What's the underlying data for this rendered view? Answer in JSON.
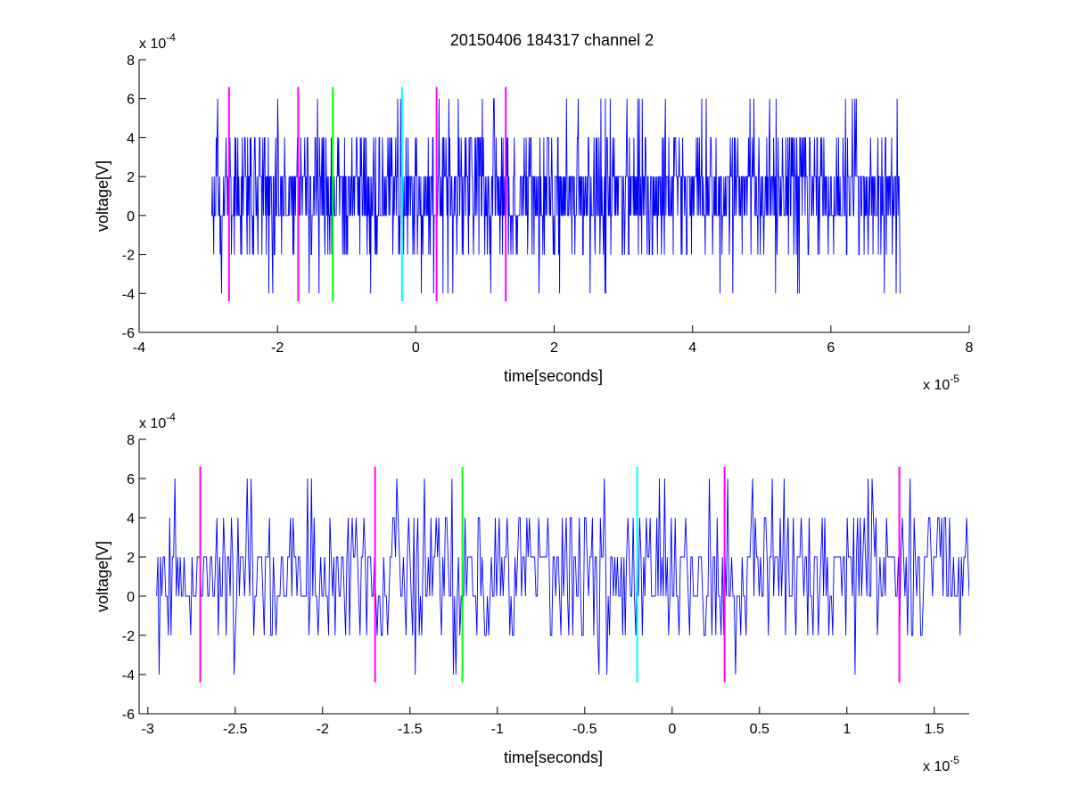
{
  "figure_title": "20150406 184317 channel 2",
  "colors": {
    "trace": "#0000ff",
    "magenta": "#ff00ff",
    "green": "#00ff00",
    "cyan": "#00ffff",
    "axes": "#000000"
  },
  "chart_data": [
    {
      "type": "line",
      "title": "20150406 184317 channel 2",
      "xlabel": "time[seconds]",
      "ylabel": "voltage[V]",
      "x_exponent": "x 10",
      "x_exponent_power": "-5",
      "y_exponent": "x 10",
      "y_exponent_power": "-4",
      "xlim": [
        -4e-05,
        8e-05
      ],
      "ylim": [
        -0.0006,
        0.0008
      ],
      "x_ticks": [
        -4e-05,
        -2e-05,
        0,
        2e-05,
        4e-05,
        6e-05,
        8e-05
      ],
      "x_tick_labels": [
        "-4",
        "-2",
        "0",
        "2",
        "4",
        "6",
        "8"
      ],
      "y_ticks": [
        -0.0006,
        -0.0004,
        -0.0002,
        0,
        0.0002,
        0.0004,
        0.0006,
        0.0008
      ],
      "y_tick_labels": [
        "-6",
        "-4",
        "-2",
        "0",
        "2",
        "4",
        "6",
        "8"
      ],
      "grid": false,
      "signal": {
        "x_start": -2.95e-05,
        "x_end": 7e-05,
        "level_step": 0.0002,
        "typical_levels": [
          0,
          0.0002
        ],
        "min": -0.0004,
        "max": 0.0006
      },
      "markers": [
        {
          "x": -2.7e-05,
          "color": "magenta",
          "y_range": [
            -0.00044,
            0.00066
          ]
        },
        {
          "x": -1.7e-05,
          "color": "magenta",
          "y_range": [
            -0.00044,
            0.00066
          ]
        },
        {
          "x": -1.2e-05,
          "color": "green",
          "y_range": [
            -0.00044,
            0.00066
          ]
        },
        {
          "x": -2e-06,
          "color": "cyan",
          "y_range": [
            -0.00044,
            0.00066
          ]
        },
        {
          "x": 3e-06,
          "color": "magenta",
          "y_range": [
            -0.00044,
            0.00066
          ]
        },
        {
          "x": 1.3e-05,
          "color": "magenta",
          "y_range": [
            -0.00044,
            0.00066
          ]
        }
      ]
    },
    {
      "type": "line",
      "xlabel": "time[seconds]",
      "ylabel": "voltage[V]",
      "x_exponent": "x 10",
      "x_exponent_power": "-5",
      "y_exponent": "x 10",
      "y_exponent_power": "-4",
      "xlim": [
        -3.05e-05,
        1.7e-05
      ],
      "ylim": [
        -0.0006,
        0.0008
      ],
      "x_ticks": [
        -3e-05,
        -2.5e-05,
        -2e-05,
        -1.5e-05,
        -1e-05,
        -5e-06,
        0,
        5e-06,
        1e-05,
        1.5e-05
      ],
      "x_tick_labels": [
        "-3",
        "-2.5",
        "-2",
        "-1.5",
        "-1",
        "-0.5",
        "0",
        "0.5",
        "1",
        "1.5"
      ],
      "y_ticks": [
        -0.0006,
        -0.0004,
        -0.0002,
        0,
        0.0002,
        0.0004,
        0.0006,
        0.0008
      ],
      "y_tick_labels": [
        "-6",
        "-4",
        "-2",
        "0",
        "2",
        "4",
        "6",
        "8"
      ],
      "grid": false,
      "signal": {
        "x_start": -2.95e-05,
        "x_end": 1.7e-05,
        "level_step": 0.0002,
        "typical_levels": [
          0,
          0.0002
        ],
        "min": -0.0004,
        "max": 0.0006
      },
      "markers": [
        {
          "x": -2.7e-05,
          "color": "magenta",
          "y_range": [
            -0.00044,
            0.00066
          ]
        },
        {
          "x": -1.7e-05,
          "color": "magenta",
          "y_range": [
            -0.00044,
            0.00066
          ]
        },
        {
          "x": -1.2e-05,
          "color": "green",
          "y_range": [
            -0.00044,
            0.00066
          ]
        },
        {
          "x": -2e-06,
          "color": "cyan",
          "y_range": [
            -0.00044,
            0.00066
          ]
        },
        {
          "x": 3e-06,
          "color": "magenta",
          "y_range": [
            -0.00044,
            0.00066
          ]
        },
        {
          "x": 1.3e-05,
          "color": "magenta",
          "y_range": [
            -0.00044,
            0.00066
          ]
        }
      ]
    }
  ]
}
